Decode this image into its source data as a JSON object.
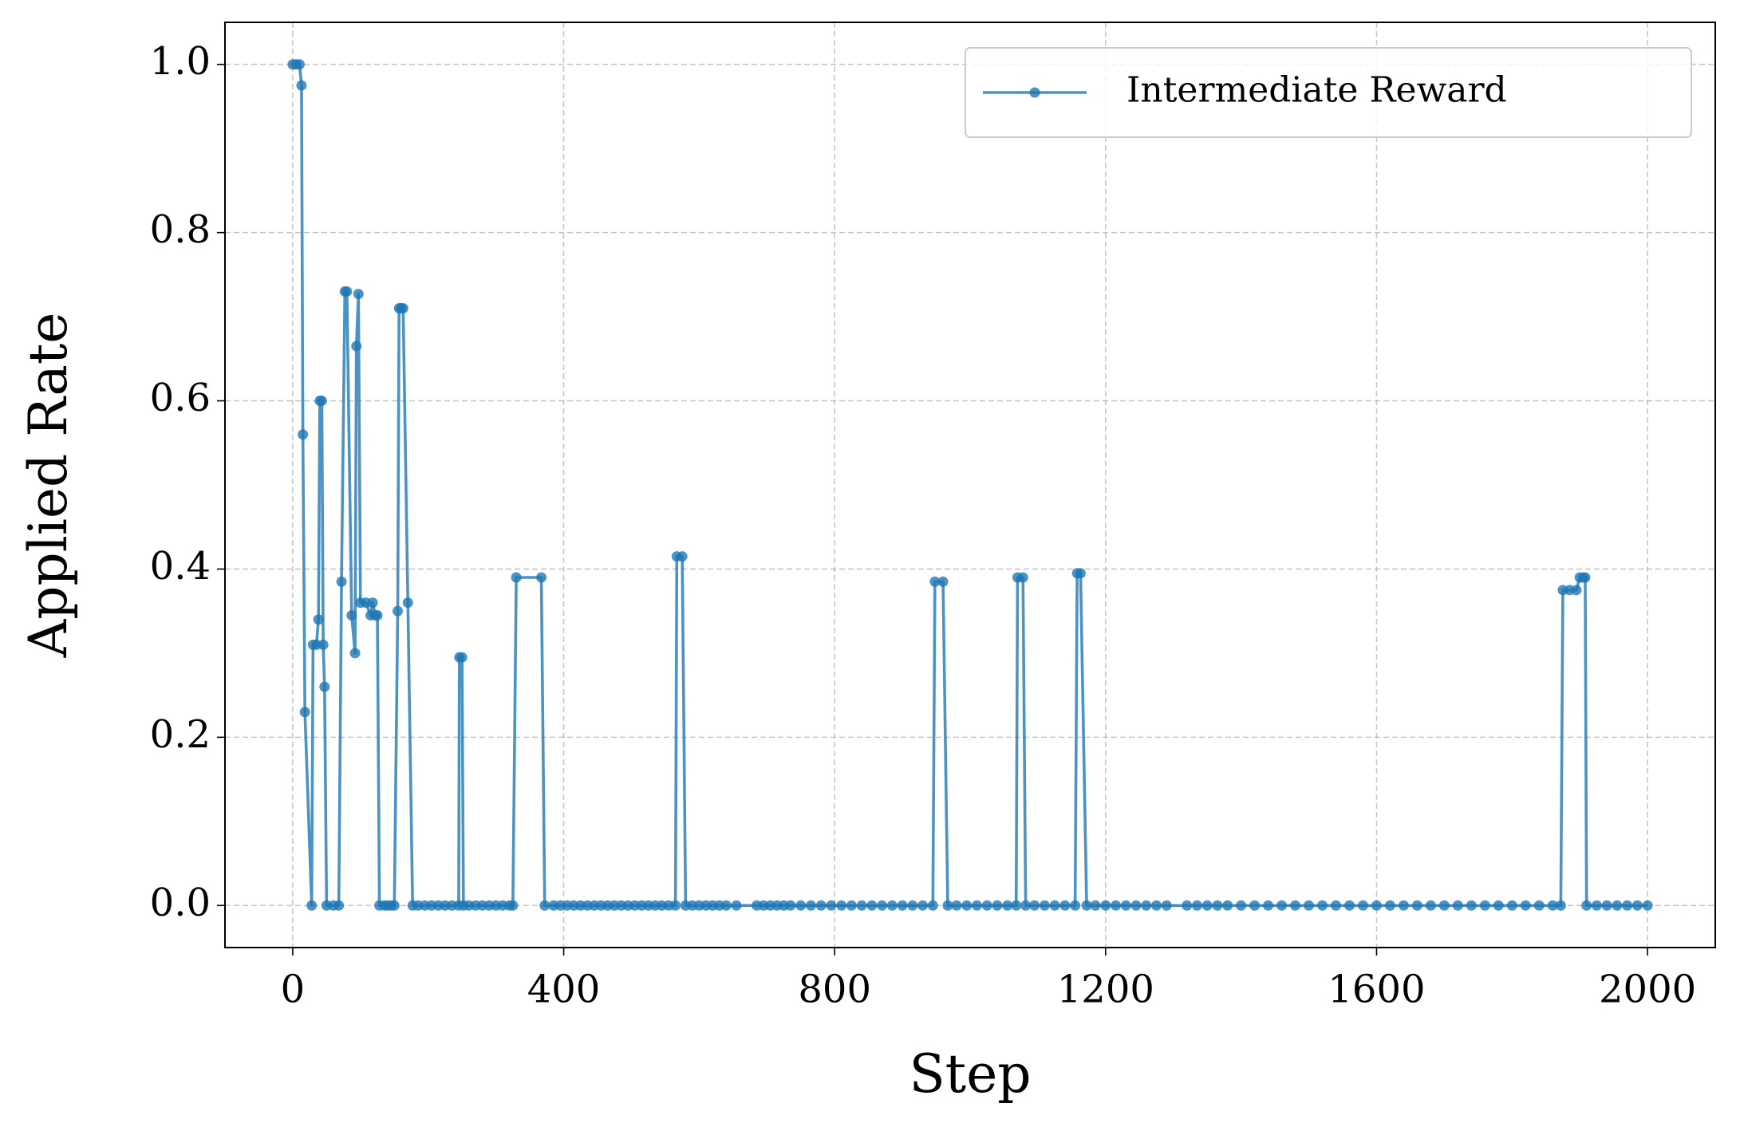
{
  "chart_data": {
    "type": "line",
    "xlabel": "Step",
    "ylabel": "Applied Rate",
    "x": [
      0,
      5,
      10,
      13,
      15,
      18,
      28,
      30,
      35,
      38,
      40,
      43,
      45,
      47,
      50,
      60,
      68,
      72,
      77,
      80,
      87,
      92,
      94,
      97,
      100,
      108,
      115,
      118,
      122,
      125,
      128,
      135,
      140,
      145,
      150,
      155,
      157,
      160,
      163,
      170,
      177,
      185,
      195,
      205,
      215,
      225,
      235,
      245,
      246,
      250,
      252,
      260,
      270,
      280,
      290,
      300,
      310,
      320,
      325,
      330,
      367,
      372,
      385,
      395,
      405,
      415,
      425,
      435,
      445,
      455,
      465,
      475,
      485,
      495,
      505,
      515,
      525,
      535,
      545,
      555,
      565,
      567,
      575,
      580,
      590,
      600,
      610,
      620,
      630,
      640,
      655,
      685,
      695,
      705,
      715,
      725,
      735,
      750,
      765,
      780,
      795,
      810,
      825,
      840,
      855,
      870,
      885,
      900,
      915,
      930,
      945,
      948,
      960,
      967,
      980,
      995,
      1010,
      1025,
      1040,
      1055,
      1068,
      1070,
      1078,
      1082,
      1095,
      1110,
      1125,
      1140,
      1155,
      1158,
      1163,
      1172,
      1185,
      1200,
      1215,
      1230,
      1245,
      1260,
      1275,
      1290,
      1320,
      1335,
      1350,
      1365,
      1380,
      1400,
      1420,
      1440,
      1460,
      1480,
      1500,
      1520,
      1540,
      1560,
      1580,
      1600,
      1620,
      1640,
      1660,
      1680,
      1700,
      1720,
      1740,
      1760,
      1780,
      1800,
      1820,
      1840,
      1860,
      1872,
      1875,
      1885,
      1895,
      1900,
      1905,
      1908,
      1910,
      1925,
      1940,
      1955,
      1970,
      1985,
      2000
    ],
    "series": [
      {
        "name": "Intermediate Reward",
        "color": "#1f77b4",
        "values": [
          1.0,
          1.0,
          1.0,
          0.975,
          0.56,
          0.23,
          0,
          0.31,
          0.31,
          0.34,
          0.6,
          0.6,
          0.31,
          0.26,
          0,
          0,
          0,
          0.385,
          0.73,
          0.73,
          0.345,
          0.3,
          0.665,
          0.727,
          0.36,
          0.36,
          0.345,
          0.36,
          0.345,
          0.345,
          0,
          0,
          0,
          0,
          0,
          0.35,
          0.71,
          0.71,
          0.71,
          0.36,
          0,
          0,
          0,
          0,
          0,
          0,
          0,
          0,
          0.295,
          0.295,
          0,
          0,
          0,
          0,
          0,
          0,
          0,
          0,
          0,
          0.39,
          0.39,
          0,
          0,
          0,
          0,
          0,
          0,
          0,
          0,
          0,
          0,
          0,
          0,
          0,
          0,
          0,
          0,
          0,
          0,
          0,
          0,
          0.415,
          0.415,
          0,
          0,
          0,
          0,
          0,
          0,
          0,
          0,
          0,
          0,
          0,
          0,
          0,
          0,
          0,
          0,
          0,
          0,
          0,
          0,
          0,
          0,
          0,
          0,
          0,
          0,
          0,
          0,
          0.385,
          0.385,
          0,
          0,
          0,
          0,
          0,
          0,
          0,
          0,
          0.39,
          0.39,
          0,
          0,
          0,
          0,
          0,
          0,
          0.395,
          0.395,
          0,
          0,
          0,
          0,
          0,
          0,
          0,
          0,
          0,
          0,
          0,
          0,
          0,
          0,
          0,
          0,
          0,
          0,
          0,
          0,
          0,
          0,
          0,
          0,
          0,
          0,
          0,
          0,
          0,
          0,
          0,
          0,
          0,
          0,
          0,
          0,
          0,
          0,
          0,
          0.375,
          0.375,
          0.375,
          0.39,
          0.39,
          0.39,
          0,
          0,
          0,
          0,
          0,
          0,
          0
        ]
      }
    ],
    "xlim": [
      -100,
      2100
    ],
    "ylim": [
      -0.05,
      1.05
    ],
    "xticks": [
      0,
      400,
      800,
      1200,
      1600,
      2000
    ],
    "yticks": [
      {
        "value": 0,
        "label": "0.0"
      },
      0.2,
      0.4,
      0.6,
      0.8,
      {
        "value": 1,
        "label": "1.0"
      }
    ],
    "grid": true,
    "legend": "upper right"
  }
}
